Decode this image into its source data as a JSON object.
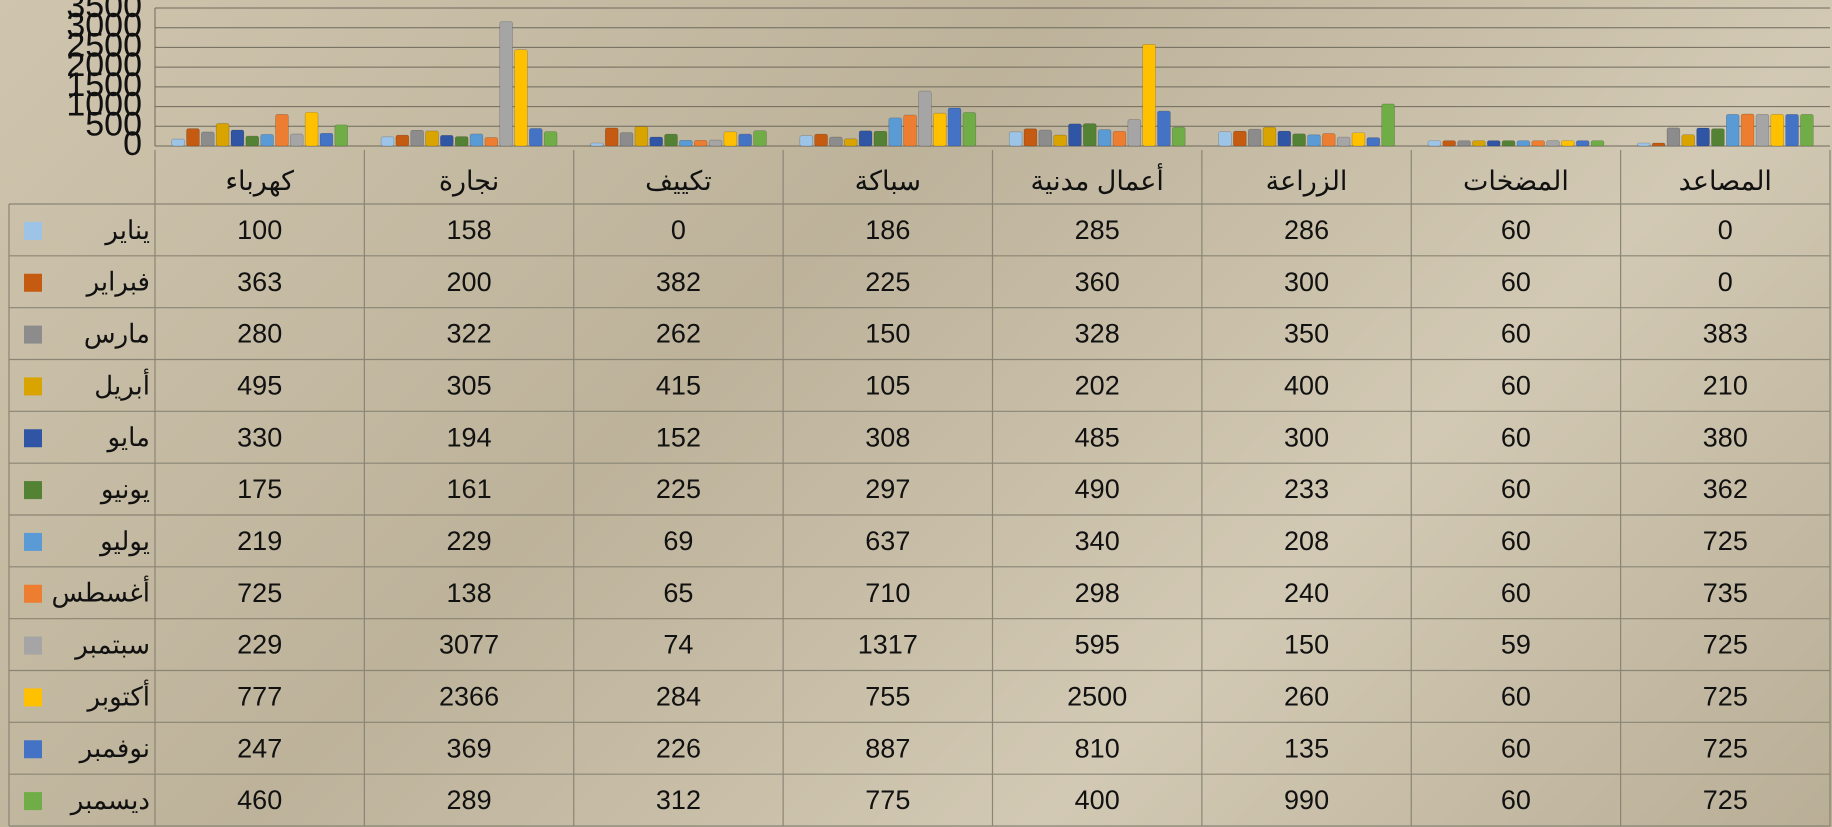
{
  "chart_data": {
    "type": "bar",
    "categories": [
      "كهرباء",
      "نجارة",
      "تكييف",
      "سباكة",
      "أعمال مدنية",
      "الزراعة",
      "المضخات",
      "المصاعد"
    ],
    "series": [
      {
        "name": "يناير",
        "color": "#9dc3e6",
        "values": [
          100,
          158,
          0,
          186,
          285,
          286,
          60,
          0
        ]
      },
      {
        "name": "فبراير",
        "color": "#c55a11",
        "values": [
          363,
          200,
          382,
          225,
          360,
          300,
          60,
          0
        ]
      },
      {
        "name": "مارس",
        "color": "#8c8c8c",
        "values": [
          280,
          322,
          262,
          150,
          328,
          350,
          60,
          383
        ]
      },
      {
        "name": "أبريل",
        "color": "#d9a400",
        "values": [
          495,
          305,
          415,
          105,
          202,
          400,
          60,
          210
        ]
      },
      {
        "name": "مايو",
        "color": "#2f55a4",
        "values": [
          330,
          194,
          152,
          308,
          485,
          300,
          60,
          380
        ]
      },
      {
        "name": "يونيو",
        "color": "#548235",
        "values": [
          175,
          161,
          225,
          297,
          490,
          233,
          60,
          362
        ]
      },
      {
        "name": "يوليو",
        "color": "#5b9bd5",
        "values": [
          219,
          229,
          69,
          637,
          340,
          208,
          60,
          725
        ]
      },
      {
        "name": "أغسطس",
        "color": "#ed7d31",
        "values": [
          725,
          138,
          65,
          710,
          298,
          240,
          60,
          735
        ]
      },
      {
        "name": "سبتمبر",
        "color": "#a5a5a5",
        "values": [
          229,
          3077,
          74,
          1317,
          595,
          150,
          59,
          725
        ]
      },
      {
        "name": "أكتوبر",
        "color": "#ffc000",
        "values": [
          777,
          2366,
          284,
          755,
          2500,
          260,
          60,
          725
        ]
      },
      {
        "name": "نوفمبر",
        "color": "#4472c4",
        "values": [
          247,
          369,
          226,
          887,
          810,
          135,
          60,
          725
        ]
      },
      {
        "name": "ديسمبر",
        "color": "#70ad47",
        "values": [
          460,
          289,
          312,
          775,
          400,
          990,
          60,
          725
        ]
      }
    ],
    "ylim": [
      0,
      3500
    ],
    "yticks": [
      0,
      500,
      1000,
      1500,
      2000,
      2500,
      3000,
      3500
    ],
    "grid": true
  }
}
